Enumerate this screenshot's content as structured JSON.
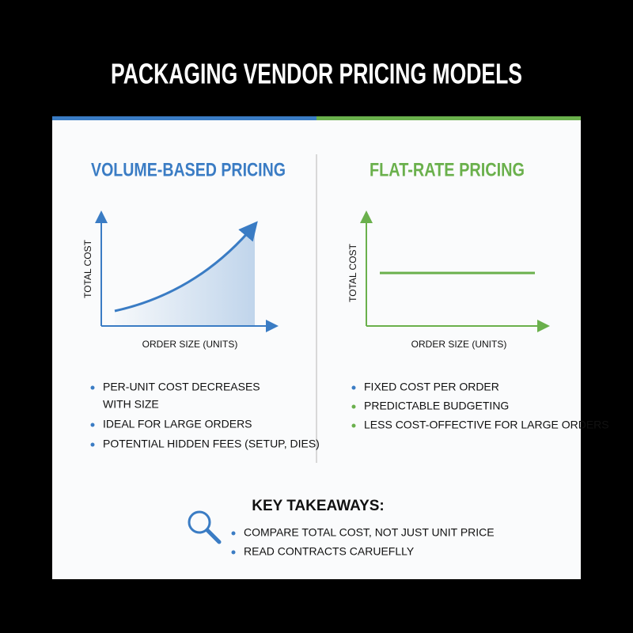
{
  "header": {
    "title": "PACKAGING VENDOR PRICING MODELS"
  },
  "left_panel": {
    "title": "VOLUME-BASED PRICING",
    "y_axis_label": "TOTAL COST",
    "x_axis_label": "ORDER SIZE (UNITS)",
    "bullets": [
      "PER-UNIT COST DECREASES",
      "WITH SIZE",
      "IDEAL FOR LARGE ORDERS",
      "POTENTIAL HIDDEN FEES (SETUP, DIES)"
    ]
  },
  "right_panel": {
    "title": "FLAT-RATE PRICING",
    "y_axis_label": "TOTAL COST",
    "x_axis_label": "ORDER SIZE (UNITS)",
    "bullets": [
      "FIXED COST PER ORDER",
      "PREDICTABLE BUDGETING",
      "LESS COST-OFFECTIVE FOR LARGE ORDERS"
    ]
  },
  "key_takeaways": {
    "title": "KEY TAKEAWAYS:",
    "bullets": [
      "COMPARE TOTAL COST, NOT JUST UNIT PRICE",
      "READ CONTRACTS CARUEFLLY"
    ]
  }
}
